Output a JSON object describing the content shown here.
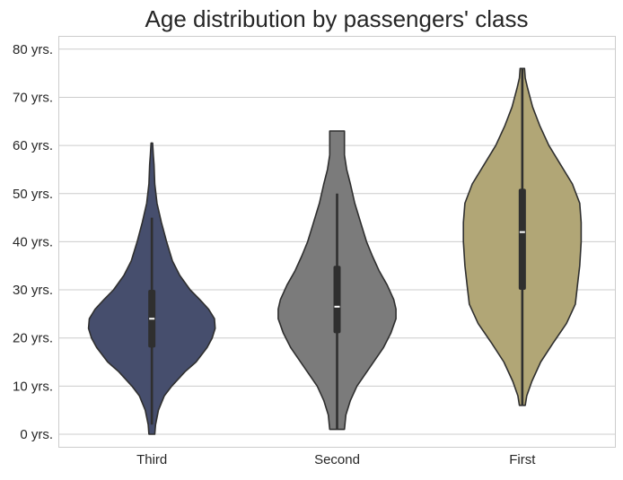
{
  "chart_data": {
    "type": "violin",
    "title": "Age distribution by passengers' class",
    "xlabel": "",
    "ylabel": "",
    "categories": [
      "Third",
      "Second",
      "First"
    ],
    "colors": [
      "#464e6d",
      "#7b7b7b",
      "#b1a676"
    ],
    "ylim": [
      -2,
      83
    ],
    "yticks": [
      0,
      10,
      20,
      30,
      40,
      50,
      60,
      70,
      80
    ],
    "ytick_labels": [
      "0 yrs.",
      "10 yrs.",
      "20 yrs.",
      "30 yrs.",
      "40 yrs.",
      "50 yrs.",
      "60 yrs.",
      "70 yrs.",
      "80 yrs."
    ],
    "grid": true,
    "series": [
      {
        "category": "Third",
        "min": 0,
        "max": 60.5,
        "whisker": [
          2,
          45
        ],
        "q1": 18,
        "median": 24,
        "q3": 30,
        "density": [
          [
            0,
            0.04
          ],
          [
            2,
            0.05
          ],
          [
            5,
            0.09
          ],
          [
            8,
            0.17
          ],
          [
            10,
            0.27
          ],
          [
            13,
            0.45
          ],
          [
            15,
            0.6
          ],
          [
            18,
            0.75
          ],
          [
            20,
            0.82
          ],
          [
            22,
            0.86
          ],
          [
            24,
            0.85
          ],
          [
            26,
            0.77
          ],
          [
            28,
            0.65
          ],
          [
            30,
            0.52
          ],
          [
            33,
            0.38
          ],
          [
            36,
            0.28
          ],
          [
            40,
            0.2
          ],
          [
            44,
            0.13
          ],
          [
            48,
            0.07
          ],
          [
            52,
            0.04
          ],
          [
            56,
            0.03
          ],
          [
            58,
            0.02
          ],
          [
            60.5,
            0.01
          ]
        ]
      },
      {
        "category": "Second",
        "min": 1,
        "max": 63,
        "whisker": [
          1,
          50
        ],
        "q1": 21,
        "median": 26.5,
        "q3": 35,
        "density": [
          [
            1,
            0.1
          ],
          [
            4,
            0.12
          ],
          [
            7,
            0.18
          ],
          [
            10,
            0.27
          ],
          [
            14,
            0.45
          ],
          [
            18,
            0.63
          ],
          [
            21,
            0.73
          ],
          [
            24,
            0.8
          ],
          [
            26,
            0.8
          ],
          [
            28,
            0.77
          ],
          [
            31,
            0.68
          ],
          [
            34,
            0.57
          ],
          [
            37,
            0.48
          ],
          [
            40,
            0.4
          ],
          [
            44,
            0.32
          ],
          [
            48,
            0.24
          ],
          [
            52,
            0.18
          ],
          [
            55,
            0.13
          ],
          [
            58,
            0.1
          ],
          [
            61,
            0.1
          ],
          [
            63,
            0.1
          ]
        ]
      },
      {
        "category": "First",
        "min": 6,
        "max": 76,
        "whisker": [
          6,
          76
        ],
        "q1": 30,
        "median": 42,
        "q3": 51,
        "density": [
          [
            6,
            0.04
          ],
          [
            8,
            0.06
          ],
          [
            11,
            0.13
          ],
          [
            15,
            0.25
          ],
          [
            19,
            0.42
          ],
          [
            23,
            0.6
          ],
          [
            27,
            0.72
          ],
          [
            31,
            0.75
          ],
          [
            35,
            0.78
          ],
          [
            40,
            0.8
          ],
          [
            44,
            0.8
          ],
          [
            48,
            0.78
          ],
          [
            52,
            0.68
          ],
          [
            56,
            0.52
          ],
          [
            60,
            0.36
          ],
          [
            64,
            0.24
          ],
          [
            68,
            0.14
          ],
          [
            72,
            0.07
          ],
          [
            74,
            0.04
          ],
          [
            76,
            0.03
          ]
        ]
      }
    ]
  }
}
